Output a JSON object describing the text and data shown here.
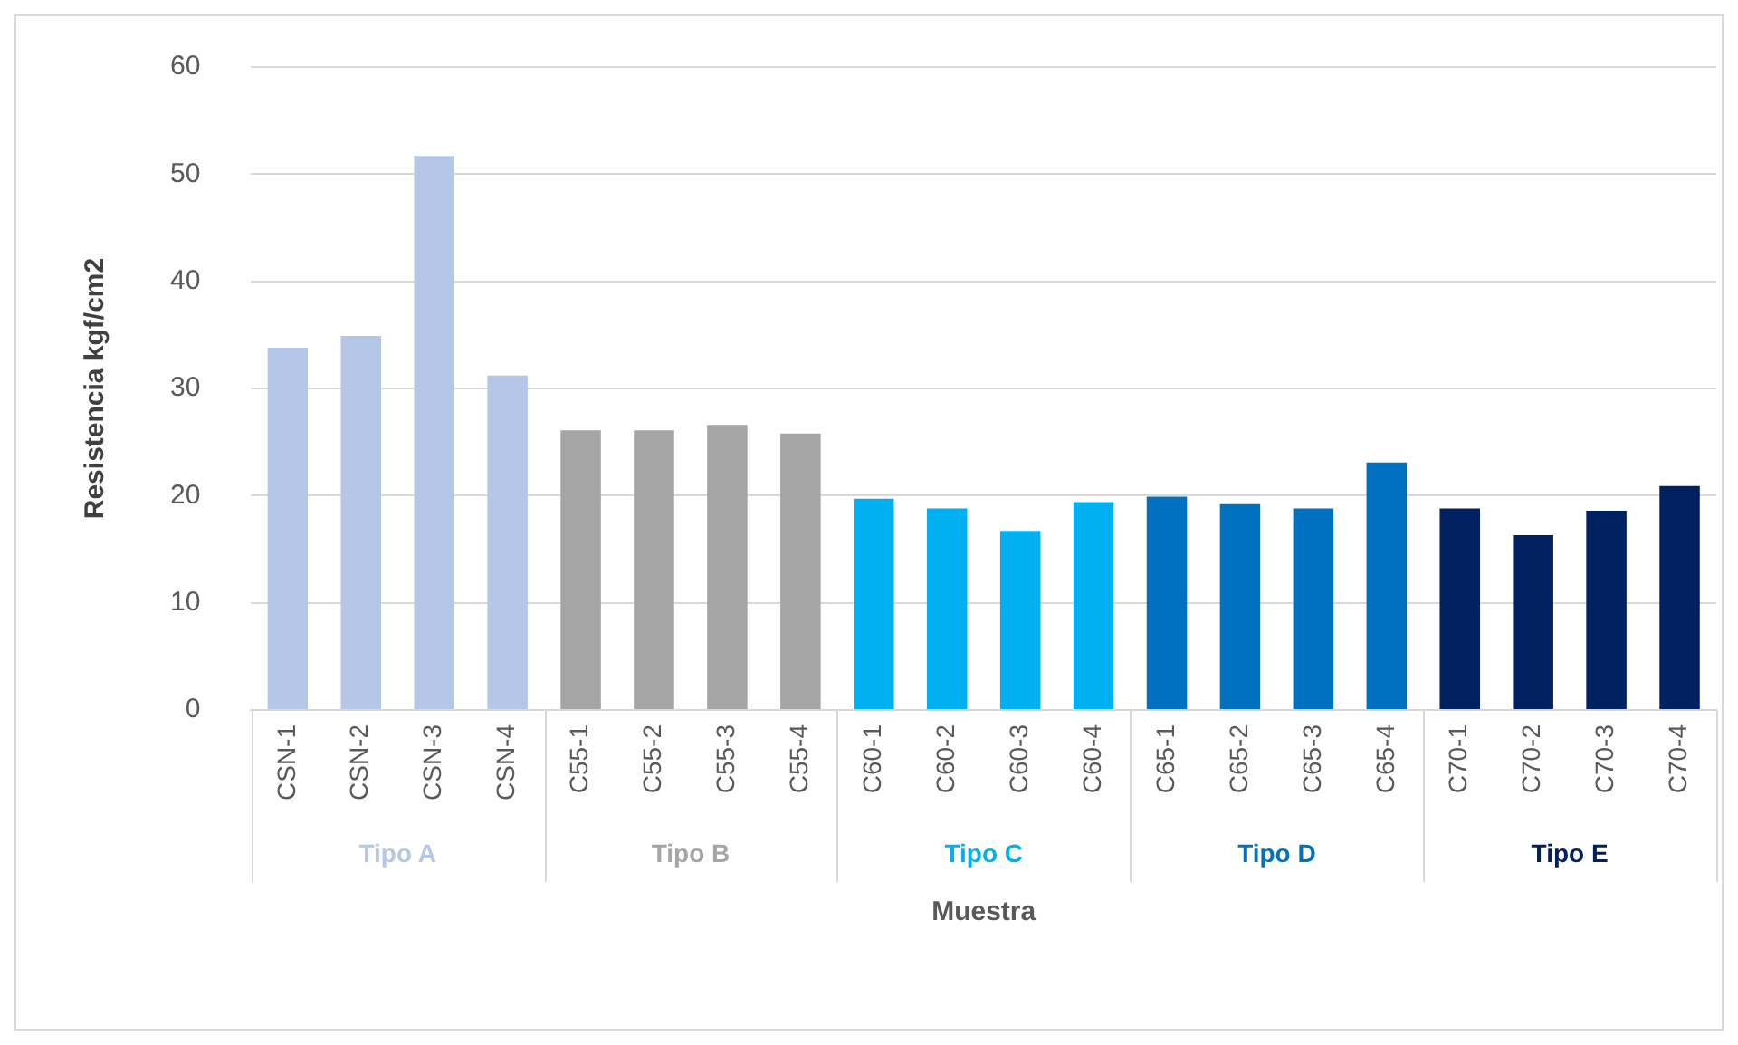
{
  "chart_data": {
    "type": "bar",
    "xlabel": "Muestra",
    "ylabel": "Resistencia kgf/cm2",
    "categories": [
      "CSN-1",
      "CSN-2",
      "CSN-3",
      "CSN-4",
      "C55-1",
      "C55-2",
      "C55-3",
      "C55-4",
      "C60-1",
      "C60-2",
      "C60-3",
      "C60-4",
      "C65-1",
      "C65-2",
      "C65-3",
      "C65-4",
      "C70-1",
      "C70-2",
      "C70-3",
      "C70-4"
    ],
    "series": [
      {
        "name": "Tipo A",
        "color": "#b4c7e7",
        "values": [
          33.8,
          34.9,
          51.7,
          31.2,
          null,
          null,
          null,
          null,
          null,
          null,
          null,
          null,
          null,
          null,
          null,
          null,
          null,
          null,
          null,
          null
        ]
      },
      {
        "name": "Tipo B",
        "color": "#a5a5a5",
        "values": [
          null,
          null,
          null,
          null,
          26.1,
          26.1,
          26.6,
          25.8,
          null,
          null,
          null,
          null,
          null,
          null,
          null,
          null,
          null,
          null,
          null,
          null
        ]
      },
      {
        "name": "Tipo C",
        "color": "#00b0f0",
        "values": [
          null,
          null,
          null,
          null,
          null,
          null,
          null,
          null,
          19.7,
          18.8,
          16.7,
          19.4,
          null,
          null,
          null,
          null,
          null,
          null,
          null,
          null
        ]
      },
      {
        "name": "Tipo D",
        "color": "#0070c0",
        "values": [
          null,
          null,
          null,
          null,
          null,
          null,
          null,
          null,
          null,
          null,
          null,
          null,
          19.9,
          19.2,
          18.8,
          23.1,
          null,
          null,
          null,
          null
        ]
      },
      {
        "name": "Tipo E",
        "color": "#002060",
        "values": [
          null,
          null,
          null,
          null,
          null,
          null,
          null,
          null,
          null,
          null,
          null,
          null,
          null,
          null,
          null,
          null,
          18.8,
          16.3,
          18.6,
          20.9
        ]
      }
    ],
    "ylim": [
      0,
      60
    ],
    "yticks": [
      0,
      10,
      20,
      30,
      40,
      50,
      60
    ],
    "grid": "y",
    "legend": false
  }
}
